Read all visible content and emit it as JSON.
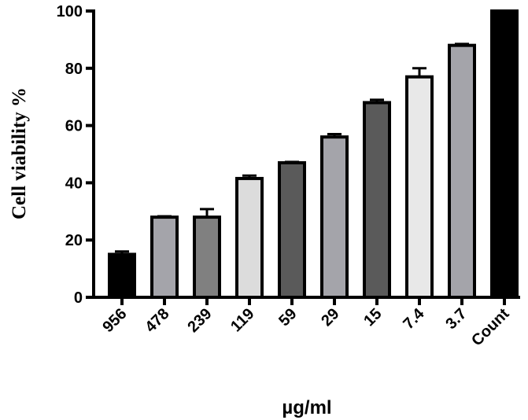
{
  "chart_data": {
    "type": "bar",
    "categories": [
      "956",
      "478",
      "239",
      "119",
      "59",
      "29",
      "15",
      "7.4",
      "3.7",
      "Count"
    ],
    "values": [
      15,
      28,
      28,
      41.5,
      47,
      56,
      68,
      77,
      88,
      100
    ],
    "errors": [
      1.0,
      0.3,
      2.8,
      1.0,
      0.3,
      1.0,
      1.0,
      3.0,
      0.5,
      0
    ],
    "bar_colors": [
      "#000000",
      "#a4a4aa",
      "#808080",
      "#dcdcdc",
      "#5a5a5a",
      "#a4a4aa",
      "#5a5a5a",
      "#e8e8e8",
      "#a4a4aa",
      "#000000"
    ],
    "xlabel": "µg/ml",
    "ylabel": "Cell viability %",
    "ylim": [
      0,
      100
    ],
    "yticks": [
      0,
      20,
      40,
      60,
      80,
      100
    ],
    "grid": false,
    "legend": "none"
  }
}
